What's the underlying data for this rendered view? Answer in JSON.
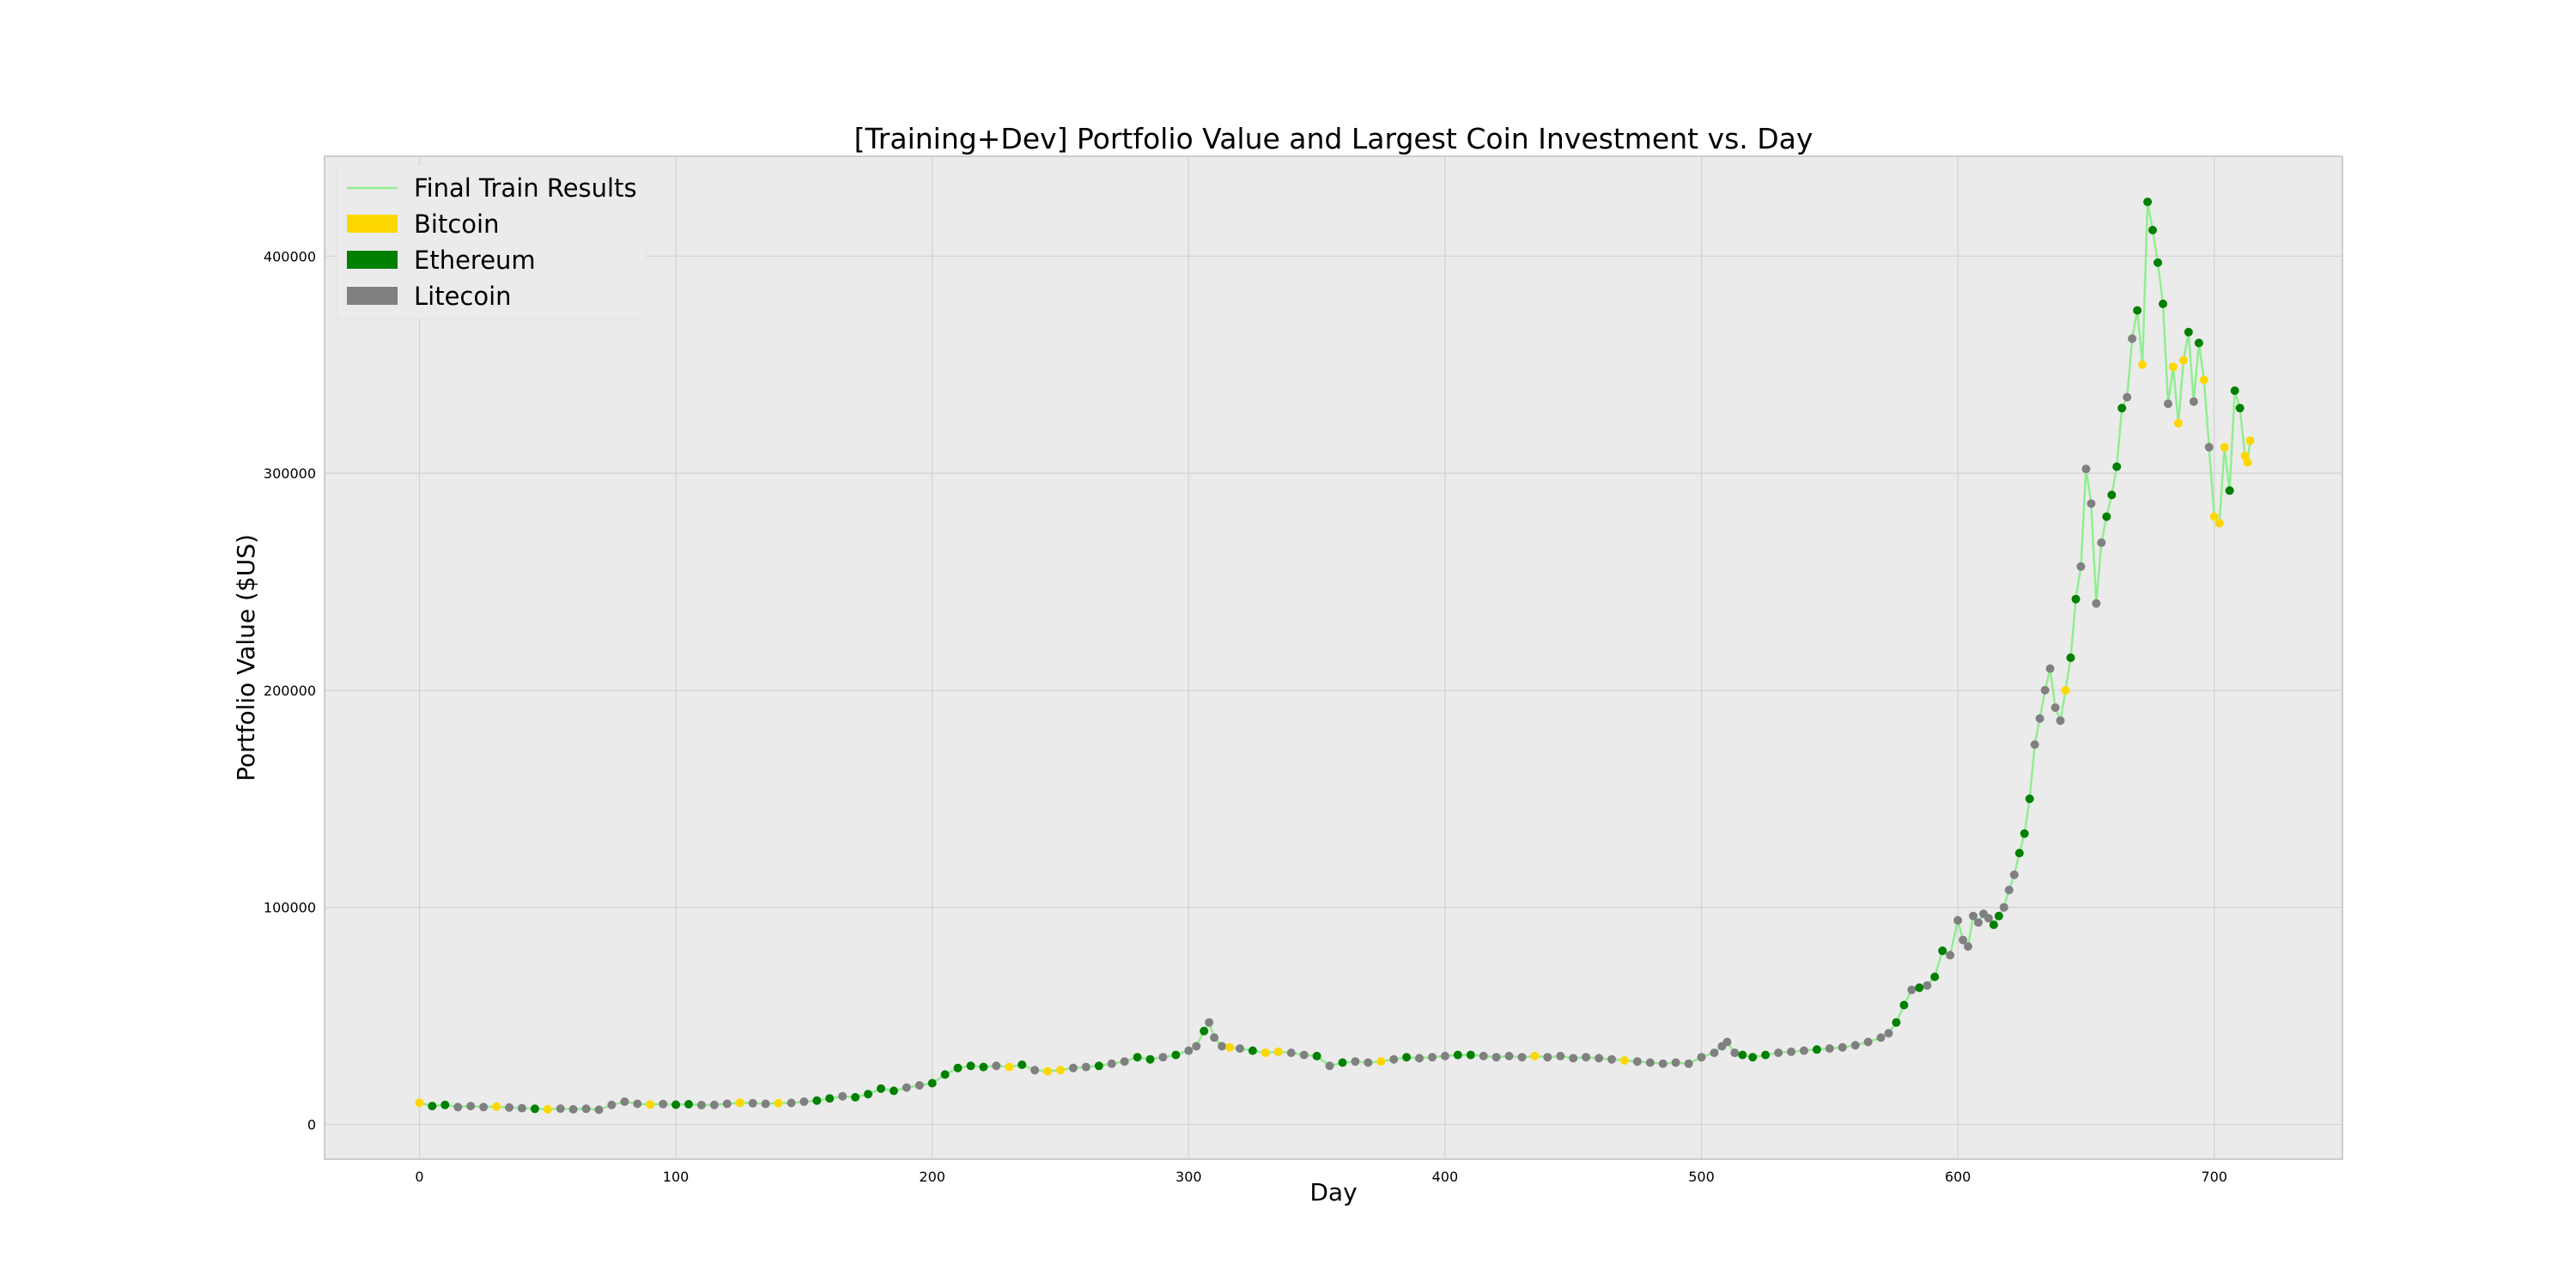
{
  "chart_data": {
    "type": "scatter",
    "title": "[Training+Dev] Portfolio Value and Largest Coin Investment vs. Day",
    "xlabel": "Day",
    "ylabel": "Portfolio Value ($US)",
    "xlim": [
      -37,
      750
    ],
    "ylim": [
      -16000,
      446000
    ],
    "xticks": [
      0,
      100,
      200,
      300,
      400,
      500,
      600,
      700
    ],
    "yticks": [
      0,
      100000,
      200000,
      300000,
      400000
    ],
    "grid": true,
    "legend": {
      "position": "top-left",
      "entries": [
        {
          "label": "Final Train Results",
          "kind": "line",
          "color": "#90ee90"
        },
        {
          "label": "Bitcoin",
          "kind": "patch",
          "color": "#ffd700"
        },
        {
          "label": "Ethereum",
          "kind": "patch",
          "color": "#008000"
        },
        {
          "label": "Litecoin",
          "kind": "patch",
          "color": "#808080"
        }
      ]
    },
    "colors": {
      "line": "#90ee90",
      "Bitcoin": "#ffd700",
      "Ethereum": "#008000",
      "Litecoin": "#808080"
    },
    "series": [
      {
        "name": "Final Train Results",
        "coin_encoding": "B=Bitcoin, E=Ethereum, L=Litecoin (point color by largest coin investment)",
        "points": [
          [
            0,
            10000,
            "B"
          ],
          [
            5,
            8500,
            "E"
          ],
          [
            10,
            9000,
            "E"
          ],
          [
            15,
            8000,
            "L"
          ],
          [
            20,
            8500,
            "L"
          ],
          [
            25,
            8000,
            "L"
          ],
          [
            30,
            8200,
            "B"
          ],
          [
            35,
            7800,
            "L"
          ],
          [
            40,
            7500,
            "L"
          ],
          [
            45,
            7200,
            "E"
          ],
          [
            50,
            7000,
            "B"
          ],
          [
            55,
            7300,
            "L"
          ],
          [
            60,
            7000,
            "L"
          ],
          [
            65,
            7200,
            "L"
          ],
          [
            70,
            6800,
            "L"
          ],
          [
            75,
            9000,
            "L"
          ],
          [
            80,
            10500,
            "L"
          ],
          [
            85,
            9500,
            "L"
          ],
          [
            90,
            9200,
            "B"
          ],
          [
            95,
            9400,
            "L"
          ],
          [
            100,
            9100,
            "E"
          ],
          [
            105,
            9300,
            "E"
          ],
          [
            110,
            8900,
            "L"
          ],
          [
            115,
            9000,
            "L"
          ],
          [
            120,
            9500,
            "L"
          ],
          [
            125,
            10000,
            "B"
          ],
          [
            130,
            9800,
            "L"
          ],
          [
            135,
            9500,
            "L"
          ],
          [
            140,
            9800,
            "B"
          ],
          [
            145,
            9900,
            "L"
          ],
          [
            150,
            10500,
            "L"
          ],
          [
            155,
            11000,
            "E"
          ],
          [
            160,
            12000,
            "E"
          ],
          [
            165,
            13000,
            "L"
          ],
          [
            170,
            12500,
            "E"
          ],
          [
            175,
            14000,
            "E"
          ],
          [
            180,
            16500,
            "E"
          ],
          [
            185,
            15500,
            "E"
          ],
          [
            190,
            17000,
            "L"
          ],
          [
            195,
            18000,
            "L"
          ],
          [
            200,
            19000,
            "E"
          ],
          [
            205,
            23000,
            "E"
          ],
          [
            210,
            26000,
            "E"
          ],
          [
            215,
            27000,
            "E"
          ],
          [
            220,
            26500,
            "E"
          ],
          [
            225,
            27000,
            "L"
          ],
          [
            230,
            26500,
            "B"
          ],
          [
            235,
            27500,
            "E"
          ],
          [
            240,
            25000,
            "L"
          ],
          [
            245,
            24500,
            "B"
          ],
          [
            250,
            25000,
            "B"
          ],
          [
            255,
            26000,
            "L"
          ],
          [
            260,
            26500,
            "L"
          ],
          [
            265,
            27000,
            "E"
          ],
          [
            270,
            28000,
            "L"
          ],
          [
            275,
            29000,
            "L"
          ],
          [
            280,
            31000,
            "E"
          ],
          [
            285,
            30000,
            "E"
          ],
          [
            290,
            31000,
            "L"
          ],
          [
            295,
            32000,
            "E"
          ],
          [
            300,
            34000,
            "L"
          ],
          [
            303,
            36000,
            "L"
          ],
          [
            306,
            43000,
            "E"
          ],
          [
            308,
            47000,
            "L"
          ],
          [
            310,
            40000,
            "L"
          ],
          [
            313,
            36000,
            "L"
          ],
          [
            316,
            35500,
            "B"
          ],
          [
            320,
            35000,
            "L"
          ],
          [
            325,
            34000,
            "E"
          ],
          [
            330,
            33000,
            "B"
          ],
          [
            335,
            33500,
            "B"
          ],
          [
            340,
            33000,
            "L"
          ],
          [
            345,
            32000,
            "L"
          ],
          [
            350,
            31500,
            "E"
          ],
          [
            355,
            27000,
            "L"
          ],
          [
            360,
            28500,
            "E"
          ],
          [
            365,
            29000,
            "L"
          ],
          [
            370,
            28500,
            "L"
          ],
          [
            375,
            29000,
            "B"
          ],
          [
            380,
            30000,
            "L"
          ],
          [
            385,
            31000,
            "E"
          ],
          [
            390,
            30500,
            "L"
          ],
          [
            395,
            31000,
            "L"
          ],
          [
            400,
            31500,
            "L"
          ],
          [
            405,
            32000,
            "E"
          ],
          [
            410,
            32000,
            "E"
          ],
          [
            415,
            31500,
            "L"
          ],
          [
            420,
            31000,
            "L"
          ],
          [
            425,
            31500,
            "L"
          ],
          [
            430,
            31000,
            "L"
          ],
          [
            435,
            31500,
            "B"
          ],
          [
            440,
            31000,
            "L"
          ],
          [
            445,
            31500,
            "L"
          ],
          [
            450,
            30500,
            "L"
          ],
          [
            455,
            31000,
            "L"
          ],
          [
            460,
            30500,
            "L"
          ],
          [
            465,
            30000,
            "L"
          ],
          [
            470,
            29500,
            "B"
          ],
          [
            475,
            29000,
            "L"
          ],
          [
            480,
            28500,
            "L"
          ],
          [
            485,
            28000,
            "L"
          ],
          [
            490,
            28500,
            "L"
          ],
          [
            495,
            28000,
            "L"
          ],
          [
            500,
            31000,
            "L"
          ],
          [
            505,
            33000,
            "L"
          ],
          [
            508,
            36000,
            "L"
          ],
          [
            510,
            38000,
            "L"
          ],
          [
            513,
            33000,
            "L"
          ],
          [
            516,
            32000,
            "E"
          ],
          [
            520,
            31000,
            "E"
          ],
          [
            525,
            32000,
            "E"
          ],
          [
            530,
            33000,
            "L"
          ],
          [
            535,
            33500,
            "L"
          ],
          [
            540,
            34000,
            "L"
          ],
          [
            545,
            34500,
            "E"
          ],
          [
            550,
            35000,
            "L"
          ],
          [
            555,
            35500,
            "L"
          ],
          [
            560,
            36500,
            "L"
          ],
          [
            565,
            38000,
            "L"
          ],
          [
            570,
            40000,
            "L"
          ],
          [
            573,
            42000,
            "L"
          ],
          [
            576,
            47000,
            "E"
          ],
          [
            579,
            55000,
            "E"
          ],
          [
            582,
            62000,
            "L"
          ],
          [
            585,
            63000,
            "E"
          ],
          [
            588,
            64000,
            "L"
          ],
          [
            591,
            68000,
            "E"
          ],
          [
            594,
            80000,
            "E"
          ],
          [
            597,
            78000,
            "L"
          ],
          [
            600,
            94000,
            "L"
          ],
          [
            602,
            85000,
            "L"
          ],
          [
            604,
            82000,
            "L"
          ],
          [
            606,
            96000,
            "L"
          ],
          [
            608,
            93000,
            "L"
          ],
          [
            610,
            97000,
            "L"
          ],
          [
            612,
            95000,
            "L"
          ],
          [
            614,
            92000,
            "E"
          ],
          [
            616,
            96000,
            "E"
          ],
          [
            618,
            100000,
            "L"
          ],
          [
            620,
            108000,
            "L"
          ],
          [
            622,
            115000,
            "L"
          ],
          [
            624,
            125000,
            "E"
          ],
          [
            626,
            134000,
            "E"
          ],
          [
            628,
            150000,
            "E"
          ],
          [
            630,
            175000,
            "L"
          ],
          [
            632,
            187000,
            "L"
          ],
          [
            634,
            200000,
            "L"
          ],
          [
            636,
            210000,
            "L"
          ],
          [
            638,
            192000,
            "L"
          ],
          [
            640,
            186000,
            "L"
          ],
          [
            642,
            200000,
            "B"
          ],
          [
            644,
            215000,
            "E"
          ],
          [
            646,
            242000,
            "E"
          ],
          [
            648,
            257000,
            "L"
          ],
          [
            650,
            302000,
            "L"
          ],
          [
            652,
            286000,
            "L"
          ],
          [
            654,
            240000,
            "L"
          ],
          [
            656,
            268000,
            "L"
          ],
          [
            658,
            280000,
            "E"
          ],
          [
            660,
            290000,
            "E"
          ],
          [
            662,
            303000,
            "E"
          ],
          [
            664,
            330000,
            "E"
          ],
          [
            666,
            335000,
            "L"
          ],
          [
            668,
            362000,
            "L"
          ],
          [
            670,
            375000,
            "E"
          ],
          [
            672,
            350000,
            "B"
          ],
          [
            674,
            425000,
            "E"
          ],
          [
            676,
            412000,
            "E"
          ],
          [
            678,
            397000,
            "E"
          ],
          [
            680,
            378000,
            "E"
          ],
          [
            682,
            332000,
            "L"
          ],
          [
            684,
            349000,
            "B"
          ],
          [
            686,
            323000,
            "B"
          ],
          [
            688,
            352000,
            "B"
          ],
          [
            690,
            365000,
            "E"
          ],
          [
            692,
            333000,
            "L"
          ],
          [
            694,
            360000,
            "E"
          ],
          [
            696,
            343000,
            "B"
          ],
          [
            698,
            312000,
            "L"
          ],
          [
            700,
            280000,
            "B"
          ],
          [
            702,
            277000,
            "B"
          ],
          [
            704,
            312000,
            "B"
          ],
          [
            706,
            292000,
            "E"
          ],
          [
            708,
            338000,
            "E"
          ],
          [
            710,
            330000,
            "E"
          ],
          [
            712,
            308000,
            "B"
          ],
          [
            713,
            305000,
            "B"
          ],
          [
            714,
            315000,
            "B"
          ]
        ]
      }
    ]
  }
}
